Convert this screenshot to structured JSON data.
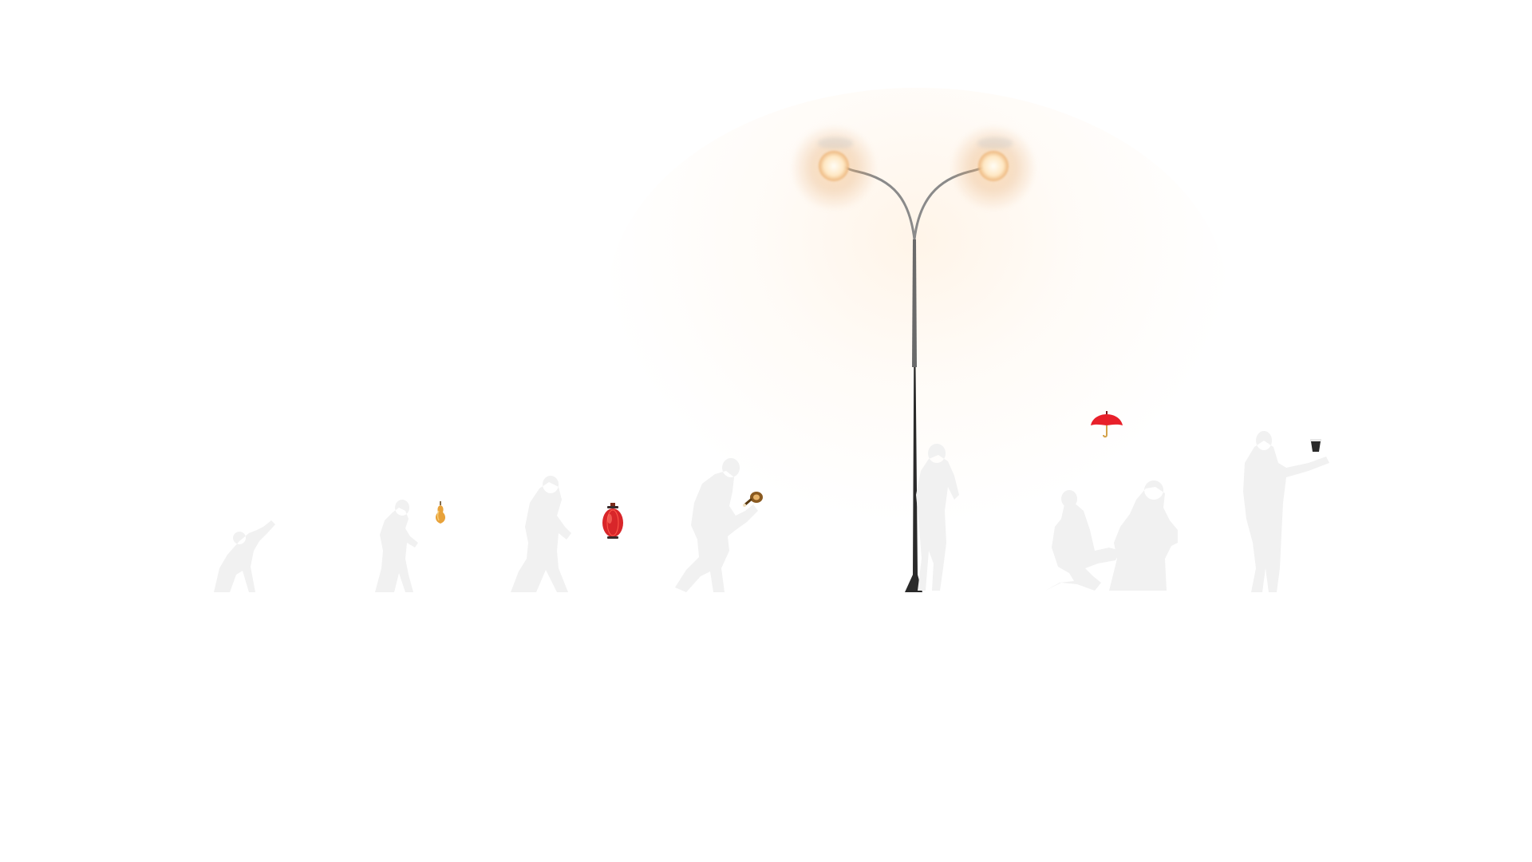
{
  "scene": {
    "background_color": "#ffffff",
    "glow_color": "#ffe8c4",
    "pole_color": "#2a2a2a",
    "silhouette_color": "#f0f0f0",
    "lantern_color": "#d8262a",
    "umbrella_color": "#e8202a",
    "pear_color": "#e8a23a",
    "drumstick_color": "#6b4a1a",
    "cup_color": "#2a2a2a"
  },
  "icons": {
    "street_lamp": "street-lamp-icon",
    "lantern": "red-lantern-icon",
    "umbrella": "red-umbrella-icon",
    "pear": "pear-icon",
    "drumstick": "drumstick-icon",
    "cup": "cup-icon"
  }
}
